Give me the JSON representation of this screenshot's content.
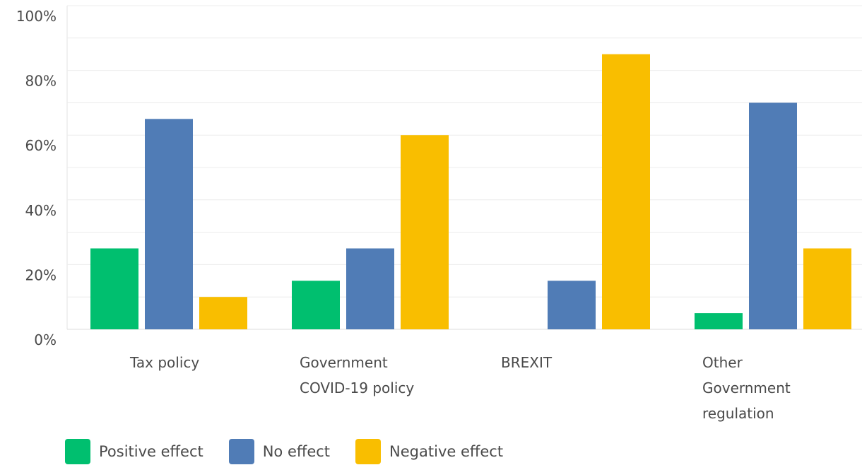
{
  "chart_data": {
    "type": "bar",
    "categories": [
      [
        "Tax policy"
      ],
      [
        "Government",
        "COVID-19 policy"
      ],
      [
        "BREXIT"
      ],
      [
        "Other",
        "Government",
        "regulation"
      ]
    ],
    "series": [
      {
        "name": "Positive effect",
        "color": "#00bf6f",
        "values": [
          25,
          15,
          0,
          5
        ]
      },
      {
        "name": "No effect",
        "color": "#507cb6",
        "values": [
          65,
          25,
          15,
          70
        ]
      },
      {
        "name": "Negative effect",
        "color": "#f9be00",
        "values": [
          10,
          60,
          85,
          25
        ]
      }
    ],
    "yticks": [
      "0%",
      "20%",
      "40%",
      "60%",
      "80%",
      "100%"
    ],
    "ylim": [
      0,
      100
    ],
    "grid": true,
    "legend_position": "bottom-left"
  },
  "colors": {
    "gridline": "#ececec",
    "axis_text": "#4a4a4a"
  }
}
